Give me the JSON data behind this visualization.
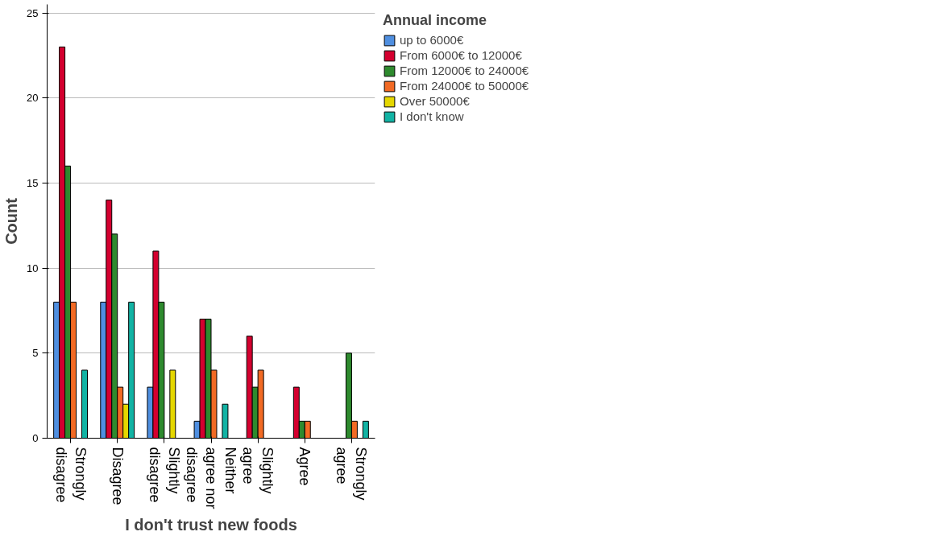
{
  "chart_data": {
    "type": "bar",
    "xlabel": "I don't trust new foods",
    "ylabel": "Count",
    "legend_title": "Annual income",
    "categories": [
      "Strongly disagree",
      "Disagree",
      "Slightly disagree",
      "Neither agree nor disagree",
      "Slightly agree",
      "Agree",
      "Strongly agree"
    ],
    "series": [
      {
        "name": "up to 6000€",
        "color": "#4f8fe0",
        "values": [
          8,
          8,
          3,
          1,
          null,
          null,
          null
        ]
      },
      {
        "name": "From 6000€ to 12000€",
        "color": "#d4002f",
        "values": [
          23,
          14,
          11,
          7,
          6,
          3,
          null
        ]
      },
      {
        "name": "From 12000€ to 24000€",
        "color": "#2e8a2e",
        "values": [
          16,
          12,
          8,
          7,
          3,
          1,
          5
        ]
      },
      {
        "name": "From 24000€ to 50000€",
        "color": "#f26a24",
        "values": [
          8,
          3,
          null,
          4,
          4,
          1,
          1
        ]
      },
      {
        "name": "Over 50000€",
        "color": "#e5d700",
        "values": [
          null,
          2,
          4,
          null,
          null,
          null,
          null
        ]
      },
      {
        "name": "I don't know",
        "color": "#12b3a4",
        "values": [
          4,
          8,
          null,
          2,
          null,
          null,
          1
        ]
      }
    ],
    "ylim": [
      0,
      25.5
    ],
    "yticks": [
      0,
      5,
      10,
      15,
      20,
      25
    ],
    "grid": "y",
    "legend": "right"
  }
}
